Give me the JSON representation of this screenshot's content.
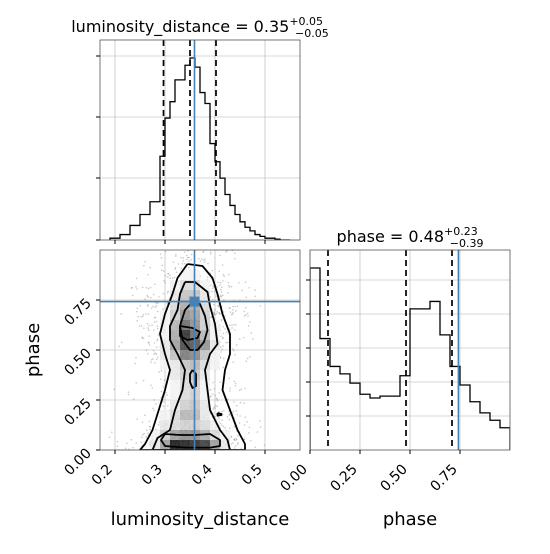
{
  "chart_data": [
    {
      "type": "histogram",
      "panel": "luminosity_distance-marginal",
      "title": {
        "text": "luminosity_distance = 0.35",
        "sup": "+0.05",
        "sub": "−0.05"
      },
      "xlim": [
        0.17,
        0.57
      ],
      "bins": [
        0.19,
        0.21,
        0.23,
        0.25,
        0.27,
        0.29,
        0.3,
        0.31,
        0.32,
        0.33,
        0.34,
        0.35,
        0.36,
        0.37,
        0.38,
        0.39,
        0.4,
        0.41,
        0.42,
        0.43,
        0.44,
        0.45,
        0.46,
        0.47,
        0.48,
        0.49,
        0.5,
        0.51,
        0.52,
        0.53,
        0.55
      ],
      "counts": [
        0.01,
        0.03,
        0.08,
        0.14,
        0.21,
        0.46,
        0.67,
        0.76,
        0.88,
        0.88,
        0.96,
        1.0,
        0.95,
        0.81,
        0.75,
        0.53,
        0.43,
        0.34,
        0.25,
        0.19,
        0.14,
        0.1,
        0.07,
        0.05,
        0.03,
        0.02,
        0.01,
        0.01,
        0.005,
        0.0
      ],
      "quantiles": [
        0.297,
        0.35,
        0.402
      ],
      "truth": 0.359,
      "xticks": [
        0.2,
        0.3,
        0.4,
        0.5
      ],
      "grid": true
    },
    {
      "type": "histogram",
      "panel": "phase-marginal",
      "title": {
        "text": "phase = 0.48",
        "sup": "+0.23",
        "sub": "−0.39"
      },
      "xlim": [
        0.0,
        1.0
      ],
      "bins": [
        0.0,
        0.05,
        0.1,
        0.15,
        0.2,
        0.25,
        0.3,
        0.35,
        0.4,
        0.45,
        0.5,
        0.55,
        0.6,
        0.65,
        0.7,
        0.75,
        0.8,
        0.85,
        0.9,
        0.95,
        1.0
      ],
      "counts": [
        0.98,
        0.6,
        0.45,
        0.41,
        0.36,
        0.3,
        0.28,
        0.29,
        0.29,
        0.4,
        0.76,
        0.76,
        0.8,
        0.62,
        0.45,
        0.35,
        0.26,
        0.2,
        0.16,
        0.12
      ],
      "quantiles": [
        0.09,
        0.48,
        0.71
      ],
      "truth": 0.742,
      "xticks": [
        0.0,
        0.25,
        0.5,
        0.75
      ],
      "xtick_labels": [
        "0.00",
        "0.25",
        "0.50",
        "0.75"
      ],
      "xlabel": "phase",
      "grid": true
    },
    {
      "type": "heatmap",
      "panel": "joint-2d",
      "xlim": [
        0.17,
        0.57
      ],
      "ylim": [
        0.0,
        1.0
      ],
      "x_bin_edges": [
        0.27,
        0.29,
        0.31,
        0.33,
        0.35,
        0.37,
        0.39,
        0.41,
        0.43
      ],
      "y_bin_edges": [
        0.0,
        0.05,
        0.1,
        0.15,
        0.2,
        0.25,
        0.3,
        0.35,
        0.4,
        0.45,
        0.5,
        0.55,
        0.6,
        0.65,
        0.7,
        0.75,
        0.8,
        0.85,
        0.9
      ],
      "density": [
        [
          0.1,
          0.4,
          0.95,
          0.9,
          0.85,
          0.8,
          0.4,
          0.1
        ],
        [
          0.05,
          0.2,
          0.4,
          0.45,
          0.45,
          0.35,
          0.15,
          0.05
        ],
        [
          0.0,
          0.1,
          0.15,
          0.2,
          0.2,
          0.15,
          0.05,
          0.0
        ],
        [
          0.0,
          0.05,
          0.15,
          0.3,
          0.3,
          0.1,
          0.0,
          0.0
        ],
        [
          0.0,
          0.0,
          0.1,
          0.2,
          0.25,
          0.1,
          0.0,
          0.0
        ],
        [
          0.0,
          0.0,
          0.05,
          0.15,
          0.2,
          0.05,
          0.0,
          0.0
        ],
        [
          0.0,
          0.0,
          0.05,
          0.15,
          0.2,
          0.05,
          0.0,
          0.0
        ],
        [
          0.0,
          0.0,
          0.1,
          0.2,
          0.25,
          0.1,
          0.0,
          0.0
        ],
        [
          0.0,
          0.05,
          0.1,
          0.25,
          0.3,
          0.15,
          0.05,
          0.0
        ],
        [
          0.0,
          0.1,
          0.25,
          0.55,
          0.5,
          0.25,
          0.05,
          0.0
        ],
        [
          0.0,
          0.1,
          0.4,
          0.75,
          0.7,
          0.45,
          0.1,
          0.0
        ],
        [
          0.0,
          0.05,
          0.35,
          0.85,
          0.6,
          0.3,
          0.05,
          0.0
        ],
        [
          0.0,
          0.05,
          0.3,
          0.6,
          0.45,
          0.2,
          0.05,
          0.0
        ],
        [
          0.0,
          0.05,
          0.2,
          0.45,
          0.4,
          0.2,
          0.0,
          0.0
        ],
        [
          0.0,
          0.0,
          0.15,
          0.35,
          0.35,
          0.15,
          0.0,
          0.0
        ],
        [
          0.0,
          0.0,
          0.1,
          0.25,
          0.25,
          0.1,
          0.0,
          0.0
        ],
        [
          0.0,
          0.0,
          0.05,
          0.15,
          0.15,
          0.05,
          0.0,
          0.0
        ],
        [
          0.0,
          0.0,
          0.0,
          0.05,
          0.05,
          0.0,
          0.0,
          0.0
        ]
      ],
      "contours": [
        [
          [
            0.345,
            0.93
          ],
          [
            0.375,
            0.92
          ],
          [
            0.395,
            0.86
          ],
          [
            0.405,
            0.78
          ],
          [
            0.415,
            0.68
          ],
          [
            0.43,
            0.58
          ],
          [
            0.43,
            0.48
          ],
          [
            0.42,
            0.4
          ],
          [
            0.415,
            0.3
          ],
          [
            0.43,
            0.2
          ],
          [
            0.445,
            0.1
          ],
          [
            0.46,
            0.03
          ],
          [
            0.46,
            0.0
          ],
          [
            0.25,
            0.0
          ],
          [
            0.26,
            0.03
          ],
          [
            0.275,
            0.1
          ],
          [
            0.29,
            0.22
          ],
          [
            0.3,
            0.3
          ],
          [
            0.31,
            0.4
          ],
          [
            0.3,
            0.48
          ],
          [
            0.29,
            0.58
          ],
          [
            0.3,
            0.68
          ],
          [
            0.315,
            0.78
          ],
          [
            0.325,
            0.86
          ],
          [
            0.345,
            0.93
          ]
        ],
        [
          [
            0.34,
            0.84
          ],
          [
            0.36,
            0.84
          ],
          [
            0.385,
            0.79
          ],
          [
            0.39,
            0.72
          ],
          [
            0.4,
            0.63
          ],
          [
            0.405,
            0.53
          ],
          [
            0.39,
            0.48
          ],
          [
            0.38,
            0.4
          ],
          [
            0.385,
            0.3
          ],
          [
            0.39,
            0.2
          ],
          [
            0.41,
            0.1
          ],
          [
            0.425,
            0.05
          ],
          [
            0.43,
            0.0
          ],
          [
            0.275,
            0.0
          ],
          [
            0.285,
            0.06
          ],
          [
            0.31,
            0.1
          ],
          [
            0.32,
            0.2
          ],
          [
            0.335,
            0.3
          ],
          [
            0.34,
            0.4
          ],
          [
            0.325,
            0.48
          ],
          [
            0.31,
            0.55
          ],
          [
            0.31,
            0.62
          ],
          [
            0.325,
            0.7
          ],
          [
            0.33,
            0.78
          ],
          [
            0.34,
            0.84
          ]
        ],
        [
          [
            0.355,
            0.74
          ],
          [
            0.37,
            0.73
          ],
          [
            0.38,
            0.67
          ],
          [
            0.385,
            0.6
          ],
          [
            0.378,
            0.54
          ],
          [
            0.365,
            0.5
          ],
          [
            0.35,
            0.5
          ],
          [
            0.335,
            0.55
          ],
          [
            0.33,
            0.62
          ],
          [
            0.34,
            0.7
          ],
          [
            0.355,
            0.74
          ]
        ],
        [
          [
            0.3,
            0.08
          ],
          [
            0.33,
            0.075
          ],
          [
            0.36,
            0.075
          ],
          [
            0.39,
            0.08
          ],
          [
            0.41,
            0.05
          ],
          [
            0.41,
            0.02
          ],
          [
            0.39,
            0.012
          ],
          [
            0.34,
            0.012
          ],
          [
            0.3,
            0.02
          ],
          [
            0.292,
            0.05
          ],
          [
            0.3,
            0.08
          ]
        ],
        [
          [
            0.33,
            0.62
          ],
          [
            0.355,
            0.61
          ],
          [
            0.37,
            0.59
          ],
          [
            0.365,
            0.56
          ],
          [
            0.345,
            0.55
          ],
          [
            0.33,
            0.57
          ],
          [
            0.33,
            0.62
          ]
        ],
        [
          [
            0.355,
            0.4
          ],
          [
            0.362,
            0.38
          ],
          [
            0.362,
            0.32
          ],
          [
            0.355,
            0.31
          ],
          [
            0.35,
            0.34
          ],
          [
            0.35,
            0.38
          ],
          [
            0.355,
            0.4
          ]
        ],
        [
          [
            0.405,
            0.185
          ],
          [
            0.413,
            0.18
          ],
          [
            0.413,
            0.175
          ],
          [
            0.405,
            0.172
          ],
          [
            0.405,
            0.185
          ]
        ]
      ],
      "truth": [
        0.359,
        0.742
      ],
      "xticks": [
        0.2,
        0.3,
        0.4,
        0.5
      ],
      "yticks": [
        0.0,
        0.25,
        0.5,
        0.75
      ],
      "ytick_labels": [
        "0.00",
        "0.25",
        "0.50",
        "0.75"
      ],
      "xlabel": "luminosity_distance",
      "ylabel": "phase",
      "grid": true
    }
  ],
  "colors": {
    "truth": "#4682b4",
    "line": "#000000",
    "grid": "#b0b0b0",
    "points": "#888888"
  }
}
